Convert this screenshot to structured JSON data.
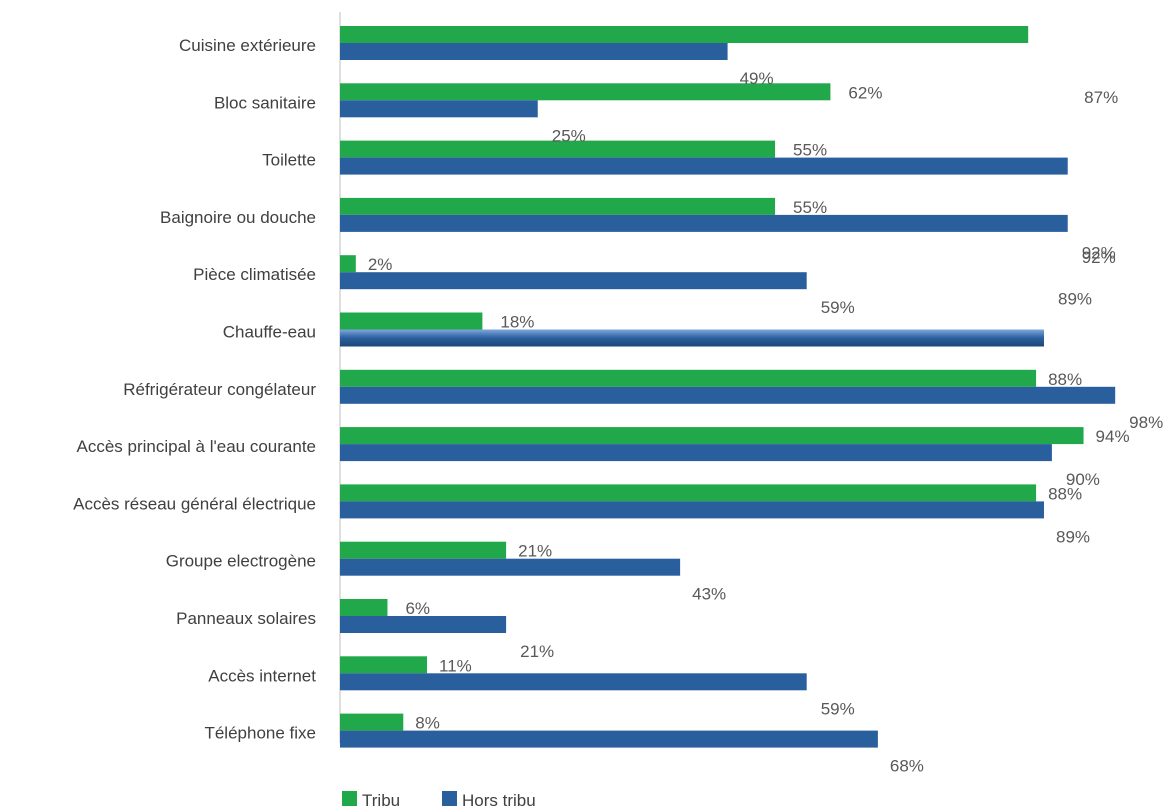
{
  "chart_data": {
    "type": "bar",
    "orientation": "horizontal",
    "categories": [
      "Cuisine extérieure",
      "Bloc sanitaire",
      "Toilette",
      "Baignoire ou douche",
      "Pièce climatisée",
      "Chauffe-eau",
      "Réfrigérateur congélateur",
      "Accès principal à l'eau courante",
      "Accès réseau général électrique",
      "Groupe electrogène",
      "Panneaux solaires",
      "Accès internet",
      "Téléphone fixe"
    ],
    "series": [
      {
        "name": "Tribu",
        "color": "#21a84a",
        "values": [
          87,
          62,
          55,
          55,
          2,
          18,
          88,
          94,
          88,
          21,
          6,
          11,
          8
        ],
        "labels": [
          "87%",
          "62%",
          "55%",
          "55%",
          "2%",
          "18%",
          "88%",
          "94%",
          "88%",
          "21%",
          "6%",
          "11%",
          "8%"
        ]
      },
      {
        "name": "Hors tribu",
        "color": "#2a5f9e",
        "values": [
          49,
          25,
          92,
          92,
          59,
          89,
          98,
          90,
          89,
          43,
          21,
          59,
          68
        ],
        "labels": [
          "49%",
          "25%",
          "92%",
          "92%",
          "59%",
          "89%",
          "98%",
          "90%",
          "89%",
          "43%",
          "21%",
          "59%",
          "68%"
        ]
      }
    ],
    "xlim": [
      0,
      100
    ],
    "grid": false,
    "legend": "bottom-left"
  }
}
